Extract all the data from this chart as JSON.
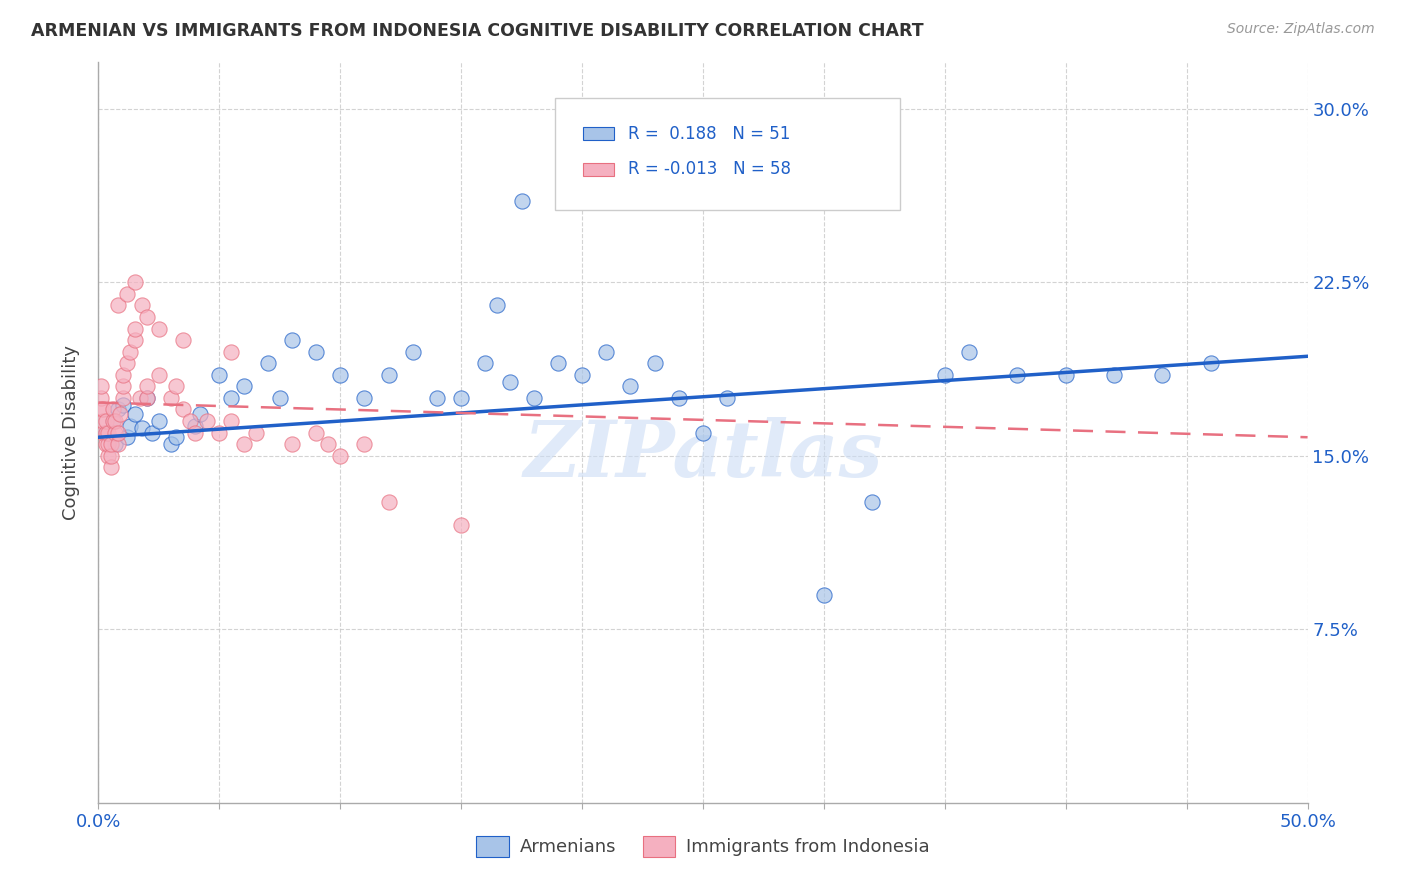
{
  "title": "ARMENIAN VS IMMIGRANTS FROM INDONESIA COGNITIVE DISABILITY CORRELATION CHART",
  "source": "Source: ZipAtlas.com",
  "ylabel": "Cognitive Disability",
  "xlim": [
    0.0,
    0.5
  ],
  "ylim": [
    0.0,
    0.32
  ],
  "ytick_positions": [
    0.075,
    0.15,
    0.225,
    0.3
  ],
  "ytick_labels": [
    "7.5%",
    "15.0%",
    "22.5%",
    "30.0%"
  ],
  "legend_label1": "Armenians",
  "legend_label2": "Immigrants from Indonesia",
  "color_blue": "#a8c4e8",
  "color_pink": "#f5b0c0",
  "line_blue": "#2060c8",
  "line_pink": "#e87080",
  "watermark": "ZIPatlas",
  "blue_x": [
    0.003,
    0.006,
    0.007,
    0.008,
    0.01,
    0.012,
    0.013,
    0.015,
    0.018,
    0.02,
    0.022,
    0.025,
    0.03,
    0.032,
    0.04,
    0.042,
    0.05,
    0.055,
    0.06,
    0.07,
    0.075,
    0.08,
    0.09,
    0.1,
    0.11,
    0.12,
    0.13,
    0.14,
    0.15,
    0.16,
    0.17,
    0.18,
    0.19,
    0.2,
    0.21,
    0.22,
    0.23,
    0.24,
    0.25,
    0.26,
    0.3,
    0.32,
    0.35,
    0.36,
    0.38,
    0.4,
    0.42,
    0.44,
    0.46,
    0.165,
    0.175
  ],
  "blue_y": [
    0.16,
    0.165,
    0.155,
    0.17,
    0.172,
    0.158,
    0.163,
    0.168,
    0.162,
    0.175,
    0.16,
    0.165,
    0.155,
    0.158,
    0.163,
    0.168,
    0.185,
    0.175,
    0.18,
    0.19,
    0.175,
    0.2,
    0.195,
    0.185,
    0.175,
    0.185,
    0.195,
    0.175,
    0.175,
    0.19,
    0.182,
    0.175,
    0.19,
    0.185,
    0.195,
    0.18,
    0.19,
    0.175,
    0.16,
    0.175,
    0.09,
    0.13,
    0.185,
    0.195,
    0.185,
    0.185,
    0.185,
    0.185,
    0.19,
    0.215,
    0.26
  ],
  "pink_x": [
    0.001,
    0.001,
    0.001,
    0.002,
    0.002,
    0.002,
    0.003,
    0.003,
    0.003,
    0.004,
    0.004,
    0.004,
    0.005,
    0.005,
    0.005,
    0.006,
    0.006,
    0.007,
    0.007,
    0.008,
    0.008,
    0.009,
    0.01,
    0.01,
    0.01,
    0.012,
    0.013,
    0.015,
    0.015,
    0.017,
    0.02,
    0.02,
    0.025,
    0.03,
    0.032,
    0.035,
    0.038,
    0.04,
    0.045,
    0.05,
    0.055,
    0.06,
    0.065,
    0.08,
    0.09,
    0.095,
    0.1,
    0.11,
    0.12,
    0.15,
    0.008,
    0.012,
    0.015,
    0.018,
    0.02,
    0.025,
    0.035,
    0.055
  ],
  "pink_y": [
    0.17,
    0.175,
    0.18,
    0.16,
    0.165,
    0.17,
    0.155,
    0.16,
    0.165,
    0.15,
    0.155,
    0.16,
    0.145,
    0.15,
    0.155,
    0.165,
    0.17,
    0.16,
    0.165,
    0.155,
    0.16,
    0.168,
    0.175,
    0.18,
    0.185,
    0.19,
    0.195,
    0.2,
    0.205,
    0.175,
    0.175,
    0.18,
    0.185,
    0.175,
    0.18,
    0.17,
    0.165,
    0.16,
    0.165,
    0.16,
    0.165,
    0.155,
    0.16,
    0.155,
    0.16,
    0.155,
    0.15,
    0.155,
    0.13,
    0.12,
    0.215,
    0.22,
    0.225,
    0.215,
    0.21,
    0.205,
    0.2,
    0.195
  ],
  "blue_line_x0": 0.0,
  "blue_line_x1": 0.5,
  "blue_line_y0": 0.158,
  "blue_line_y1": 0.193,
  "pink_line_x0": 0.0,
  "pink_line_x1": 0.5,
  "pink_line_y0": 0.173,
  "pink_line_y1": 0.158
}
